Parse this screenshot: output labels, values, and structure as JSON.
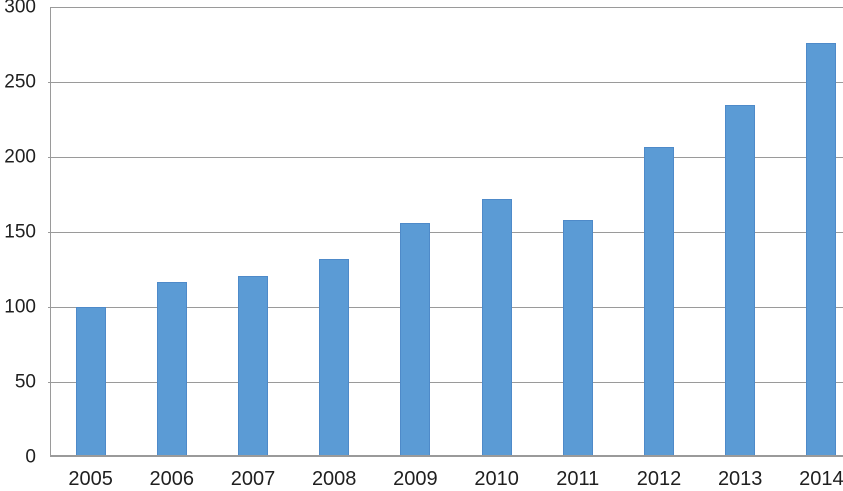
{
  "chart_data": {
    "type": "bar",
    "categories": [
      "2005",
      "2006",
      "2007",
      "2008",
      "2009",
      "2010",
      "2011",
      "2012",
      "2013",
      "2014"
    ],
    "values": [
      100,
      117,
      121,
      132,
      156,
      172,
      158,
      207,
      235,
      276
    ],
    "ylim": [
      0,
      300
    ],
    "y_ticks": [
      0,
      50,
      100,
      150,
      200,
      250,
      300
    ],
    "grid": true,
    "legend": false,
    "bar_color": "#5B9BD5",
    "bar_border_color": "#4E8AC9",
    "gridline_color": "#9A9A9A",
    "axis_color": "#9A9A9A",
    "tick_label_color": "#1F1F1F",
    "background_color": "#FFFFFF"
  }
}
